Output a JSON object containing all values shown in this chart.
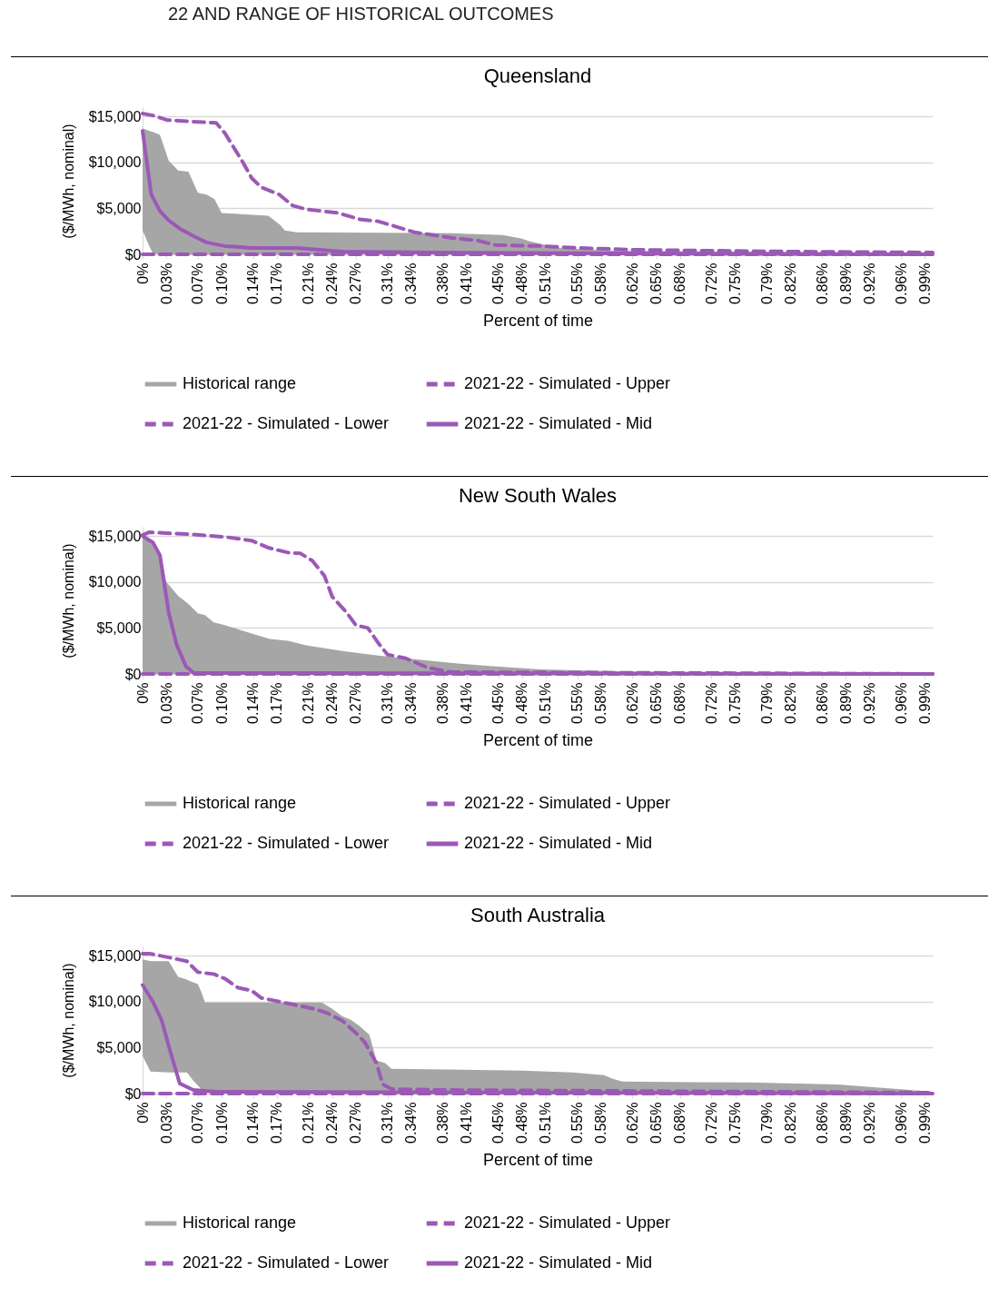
{
  "chart_data": [
    {
      "type": "line",
      "title": "Queensland",
      "xlabel": "Percent of time",
      "ylabel": "($/MWh, nominal)",
      "annotations": [
        "22 AND RANGE OF HISTORICAL OUTCOMES"
      ],
      "xlim": [
        0,
        1.0
      ],
      "xticks": [
        {
          "value": 0,
          "label": "0%"
        },
        {
          "value": 0.03,
          "label": "0.03%"
        },
        {
          "value": 0.07,
          "label": "0.07%"
        },
        {
          "value": 0.1,
          "label": "0.10%"
        },
        {
          "value": 0.14,
          "label": "0.14%"
        },
        {
          "value": 0.17,
          "label": "0.17%"
        },
        {
          "value": 0.21,
          "label": "0.21%"
        },
        {
          "value": 0.24,
          "label": "0.24%"
        },
        {
          "value": 0.27,
          "label": "0.27%"
        },
        {
          "value": 0.31,
          "label": "0.31%"
        },
        {
          "value": 0.34,
          "label": "0.34%"
        },
        {
          "value": 0.38,
          "label": "0.38%"
        },
        {
          "value": 0.41,
          "label": "0.41%"
        },
        {
          "value": 0.45,
          "label": "0.45%"
        },
        {
          "value": 0.48,
          "label": "0.48%"
        },
        {
          "value": 0.51,
          "label": "0.51%"
        },
        {
          "value": 0.55,
          "label": "0.55%"
        },
        {
          "value": 0.58,
          "label": "0.58%"
        },
        {
          "value": 0.62,
          "label": "0.62%"
        },
        {
          "value": 0.65,
          "label": "0.65%"
        },
        {
          "value": 0.68,
          "label": "0.68%"
        },
        {
          "value": 0.72,
          "label": "0.72%"
        },
        {
          "value": 0.75,
          "label": "0.75%"
        },
        {
          "value": 0.79,
          "label": "0.79%"
        },
        {
          "value": 0.82,
          "label": "0.82%"
        },
        {
          "value": 0.86,
          "label": "0.86%"
        },
        {
          "value": 0.89,
          "label": "0.89%"
        },
        {
          "value": 0.92,
          "label": "0.92%"
        },
        {
          "value": 0.96,
          "label": "0.96%"
        },
        {
          "value": 0.99,
          "label": "0.99%"
        }
      ],
      "ylim": [
        0,
        16000
      ],
      "yticks": [
        {
          "value": 0,
          "label": "$0"
        },
        {
          "value": 5000,
          "label": "$5,000"
        },
        {
          "value": 10000,
          "label": "$10,000"
        },
        {
          "value": 15000,
          "label": "$15,000"
        }
      ],
      "grid": "y",
      "legend": "bottom",
      "series": [
        {
          "name": "Historical range",
          "type": "area",
          "color": "#a6a6a6",
          "x": [
            0,
            0.009,
            0.013,
            0.022,
            0.033,
            0.045,
            0.058,
            0.07,
            0.081,
            0.091,
            0.1,
            0.138,
            0.159,
            0.174,
            0.18,
            0.195,
            0.39,
            0.456,
            0.48,
            0.49,
            0.527,
            0.595,
            1.0
          ],
          "values": [
            null,
            null,
            null,
            null,
            null,
            null,
            null,
            null,
            null,
            null,
            null,
            null,
            null,
            null,
            null,
            null,
            null,
            null,
            null,
            null,
            null,
            null,
            null
          ],
          "upper": [
            13700,
            13400,
            13300,
            13000,
            10200,
            9100,
            9000,
            6700,
            6500,
            6000,
            4500,
            4300,
            4200,
            3200,
            2600,
            2400,
            2300,
            2100,
            1700,
            1400,
            700,
            400,
            100
          ],
          "lower": [
            2600,
            800,
            100,
            0,
            0,
            0,
            0,
            0,
            0,
            0,
            0,
            0,
            0,
            0,
            0,
            0,
            0,
            0,
            0,
            0,
            0,
            0,
            0
          ]
        },
        {
          "name": "2021-22 - Simulated - Upper",
          "type": "line",
          "color": "#9b59b6",
          "line_style": "dashed",
          "x": [
            0,
            0.013,
            0.031,
            0.07,
            0.093,
            0.104,
            0.127,
            0.138,
            0.15,
            0.173,
            0.19,
            0.207,
            0.247,
            0.275,
            0.298,
            0.344,
            0.39,
            0.424,
            0.447,
            0.504,
            0.55,
            0.618,
            0.71,
            0.824,
            1.0
          ],
          "values": [
            15300,
            15100,
            14600,
            14400,
            14300,
            13200,
            10000,
            8300,
            7300,
            6500,
            5300,
            4900,
            4500,
            3800,
            3600,
            2400,
            1800,
            1500,
            1000,
            900,
            700,
            500,
            400,
            300,
            200
          ]
        },
        {
          "name": "2021-22 - Simulated - Lower",
          "type": "line",
          "color": "#9b59b6",
          "line_style": "dashed",
          "x": [
            0,
            1.0
          ],
          "values": [
            0,
            0
          ]
        },
        {
          "name": "2021-22 - Simulated - Mid",
          "type": "line",
          "color": "#9b59b6",
          "line_style": "solid",
          "x": [
            0,
            0.011,
            0.022,
            0.033,
            0.047,
            0.064,
            0.081,
            0.104,
            0.138,
            0.195,
            0.253,
            0.367,
            0.595,
            1.0
          ],
          "values": [
            13400,
            6500,
            4700,
            3700,
            2800,
            2000,
            1300,
            900,
            700,
            700,
            300,
            200,
            100,
            0
          ]
        }
      ]
    },
    {
      "type": "line",
      "title": "New South Wales",
      "xlabel": "Percent of time",
      "ylabel": "($/MWh, nominal)",
      "xlim": [
        0,
        1.0
      ],
      "xticks": [
        {
          "value": 0,
          "label": "0%"
        },
        {
          "value": 0.03,
          "label": "0.03%"
        },
        {
          "value": 0.07,
          "label": "0.07%"
        },
        {
          "value": 0.1,
          "label": "0.10%"
        },
        {
          "value": 0.14,
          "label": "0.14%"
        },
        {
          "value": 0.17,
          "label": "0.17%"
        },
        {
          "value": 0.21,
          "label": "0.21%"
        },
        {
          "value": 0.24,
          "label": "0.24%"
        },
        {
          "value": 0.27,
          "label": "0.27%"
        },
        {
          "value": 0.31,
          "label": "0.31%"
        },
        {
          "value": 0.34,
          "label": "0.34%"
        },
        {
          "value": 0.38,
          "label": "0.38%"
        },
        {
          "value": 0.41,
          "label": "0.41%"
        },
        {
          "value": 0.45,
          "label": "0.45%"
        },
        {
          "value": 0.48,
          "label": "0.48%"
        },
        {
          "value": 0.51,
          "label": "0.51%"
        },
        {
          "value": 0.55,
          "label": "0.55%"
        },
        {
          "value": 0.58,
          "label": "0.58%"
        },
        {
          "value": 0.62,
          "label": "0.62%"
        },
        {
          "value": 0.65,
          "label": "0.65%"
        },
        {
          "value": 0.68,
          "label": "0.68%"
        },
        {
          "value": 0.72,
          "label": "0.72%"
        },
        {
          "value": 0.75,
          "label": "0.75%"
        },
        {
          "value": 0.79,
          "label": "0.79%"
        },
        {
          "value": 0.82,
          "label": "0.82%"
        },
        {
          "value": 0.86,
          "label": "0.86%"
        },
        {
          "value": 0.89,
          "label": "0.89%"
        },
        {
          "value": 0.92,
          "label": "0.92%"
        },
        {
          "value": 0.96,
          "label": "0.96%"
        },
        {
          "value": 0.99,
          "label": "0.99%"
        }
      ],
      "ylim": [
        0,
        16000
      ],
      "yticks": [
        {
          "value": 0,
          "label": "$0"
        },
        {
          "value": 5000,
          "label": "$5,000"
        },
        {
          "value": 10000,
          "label": "$10,000"
        },
        {
          "value": 15000,
          "label": "$15,000"
        }
      ],
      "grid": "y",
      "legend": "bottom",
      "series": [
        {
          "name": "Historical range",
          "type": "area",
          "color": "#a6a6a6",
          "x": [
            0,
            0.008,
            0.022,
            0.03,
            0.045,
            0.058,
            0.07,
            0.079,
            0.09,
            0.104,
            0.138,
            0.161,
            0.184,
            0.207,
            0.253,
            0.298,
            0.344,
            0.39,
            0.435,
            0.504,
            0.595,
            0.71,
            1.0
          ],
          "values": [
            null,
            null,
            null,
            null,
            null,
            null,
            null,
            null,
            null,
            null,
            null,
            null,
            null,
            null,
            null,
            null,
            null,
            null,
            null,
            null,
            null,
            null,
            null
          ],
          "upper": [
            15000,
            14500,
            13000,
            10000,
            8500,
            7600,
            6600,
            6400,
            5600,
            5300,
            4400,
            3800,
            3600,
            3100,
            2500,
            2000,
            1600,
            1200,
            900,
            500,
            300,
            100,
            0
          ],
          "lower": [
            0,
            0,
            0,
            0,
            0,
            0,
            0,
            0,
            0,
            0,
            0,
            0,
            0,
            0,
            0,
            0,
            0,
            0,
            0,
            0,
            0,
            0,
            0
          ]
        },
        {
          "name": "2021-22 - Simulated - Upper",
          "type": "line",
          "color": "#9b59b6",
          "line_style": "dashed",
          "x": [
            0,
            0.008,
            0.058,
            0.104,
            0.138,
            0.16,
            0.184,
            0.2,
            0.215,
            0.23,
            0.24,
            0.258,
            0.27,
            0.285,
            0.298,
            0.31,
            0.333,
            0.344,
            0.36,
            0.39,
            1.0
          ],
          "values": [
            15100,
            15400,
            15200,
            14900,
            14500,
            13700,
            13200,
            13100,
            12300,
            10700,
            8400,
            6700,
            5300,
            5000,
            3400,
            2100,
            1700,
            1300,
            700,
            200,
            0
          ]
        },
        {
          "name": "2021-22 - Simulated - Lower",
          "type": "line",
          "color": "#9b59b6",
          "line_style": "dashed",
          "x": [
            0,
            1.0
          ],
          "values": [
            0,
            0
          ]
        },
        {
          "name": "2021-22 - Simulated - Mid",
          "type": "line",
          "color": "#9b59b6",
          "line_style": "solid",
          "x": [
            0,
            0.013,
            0.022,
            0.033,
            0.043,
            0.055,
            0.065,
            1.0
          ],
          "values": [
            15000,
            14300,
            12900,
            6700,
            3200,
            800,
            100,
            0
          ]
        }
      ]
    },
    {
      "type": "line",
      "title": "South Australia",
      "xlabel": "Percent of time",
      "ylabel": "($/MWh, nominal)",
      "xlim": [
        0,
        1.0
      ],
      "xticks": [
        {
          "value": 0,
          "label": "0%"
        },
        {
          "value": 0.03,
          "label": "0.03%"
        },
        {
          "value": 0.07,
          "label": "0.07%"
        },
        {
          "value": 0.1,
          "label": "0.10%"
        },
        {
          "value": 0.14,
          "label": "0.14%"
        },
        {
          "value": 0.17,
          "label": "0.17%"
        },
        {
          "value": 0.21,
          "label": "0.21%"
        },
        {
          "value": 0.24,
          "label": "0.24%"
        },
        {
          "value": 0.27,
          "label": "0.27%"
        },
        {
          "value": 0.31,
          "label": "0.31%"
        },
        {
          "value": 0.34,
          "label": "0.34%"
        },
        {
          "value": 0.38,
          "label": "0.38%"
        },
        {
          "value": 0.41,
          "label": "0.41%"
        },
        {
          "value": 0.45,
          "label": "0.45%"
        },
        {
          "value": 0.48,
          "label": "0.48%"
        },
        {
          "value": 0.51,
          "label": "0.51%"
        },
        {
          "value": 0.55,
          "label": "0.55%"
        },
        {
          "value": 0.58,
          "label": "0.58%"
        },
        {
          "value": 0.62,
          "label": "0.62%"
        },
        {
          "value": 0.65,
          "label": "0.65%"
        },
        {
          "value": 0.68,
          "label": "0.68%"
        },
        {
          "value": 0.72,
          "label": "0.72%"
        },
        {
          "value": 0.75,
          "label": "0.75%"
        },
        {
          "value": 0.79,
          "label": "0.79%"
        },
        {
          "value": 0.82,
          "label": "0.82%"
        },
        {
          "value": 0.86,
          "label": "0.86%"
        },
        {
          "value": 0.89,
          "label": "0.89%"
        },
        {
          "value": 0.92,
          "label": "0.92%"
        },
        {
          "value": 0.96,
          "label": "0.96%"
        },
        {
          "value": 0.99,
          "label": "0.99%"
        }
      ],
      "ylim": [
        0,
        16000
      ],
      "yticks": [
        {
          "value": 0,
          "label": "$0"
        },
        {
          "value": 5000,
          "label": "$5,000"
        },
        {
          "value": 10000,
          "label": "$10,000"
        },
        {
          "value": 15000,
          "label": "$15,000"
        }
      ],
      "grid": "y",
      "legend": "bottom",
      "series": [
        {
          "name": "Historical range",
          "type": "area",
          "color": "#a6a6a6",
          "x": [
            0,
            0.01,
            0.033,
            0.045,
            0.056,
            0.058,
            0.064,
            0.07,
            0.075,
            0.079,
            0.227,
            0.24,
            0.253,
            0.264,
            0.275,
            0.287,
            0.296,
            0.307,
            0.315,
            0.48,
            0.544,
            0.584,
            0.595,
            0.607,
            0.767,
            0.88,
            1.0
          ],
          "values": [
            null,
            null,
            null,
            null,
            null,
            null,
            null,
            null,
            null,
            null,
            null,
            null,
            null,
            null,
            null,
            null,
            null,
            null,
            null,
            null,
            null,
            null,
            null,
            null,
            null,
            null,
            null
          ],
          "upper": [
            14600,
            14400,
            14400,
            12700,
            12400,
            12300,
            12100,
            11900,
            10900,
            9900,
            9900,
            9200,
            8400,
            8000,
            7300,
            6400,
            3600,
            3300,
            2700,
            2500,
            2300,
            2000,
            1600,
            1300,
            1200,
            1000,
            200
          ],
          "lower": [
            4100,
            2400,
            2300,
            2300,
            2300,
            2100,
            1400,
            900,
            400,
            200,
            0,
            0,
            0,
            0,
            0,
            0,
            0,
            0,
            0,
            0,
            0,
            0,
            0,
            0,
            0,
            0,
            0
          ]
        },
        {
          "name": "2021-22 - Simulated - Upper",
          "type": "line",
          "color": "#9b59b6",
          "line_style": "dashed",
          "x": [
            0,
            0.01,
            0.033,
            0.056,
            0.07,
            0.09,
            0.104,
            0.121,
            0.138,
            0.15,
            0.184,
            0.218,
            0.235,
            0.253,
            0.27,
            0.281,
            0.296,
            0.304,
            0.315,
            0.367,
            1.0
          ],
          "values": [
            15200,
            15200,
            14800,
            14400,
            13200,
            13000,
            12500,
            11500,
            11200,
            10400,
            9800,
            9200,
            8700,
            7900,
            6600,
            5600,
            3300,
            1000,
            500,
            400,
            100
          ]
        },
        {
          "name": "2021-22 - Simulated - Lower",
          "type": "line",
          "color": "#9b59b6",
          "line_style": "dashed",
          "x": [
            0,
            1.0
          ],
          "values": [
            0,
            0
          ]
        },
        {
          "name": "2021-22 - Simulated - Mid",
          "type": "line",
          "color": "#9b59b6",
          "line_style": "solid",
          "x": [
            0,
            0.013,
            0.024,
            0.035,
            0.047,
            0.064,
            0.093,
            1.0
          ],
          "values": [
            11800,
            10000,
            8000,
            4600,
            1100,
            400,
            200,
            0
          ]
        }
      ]
    }
  ]
}
